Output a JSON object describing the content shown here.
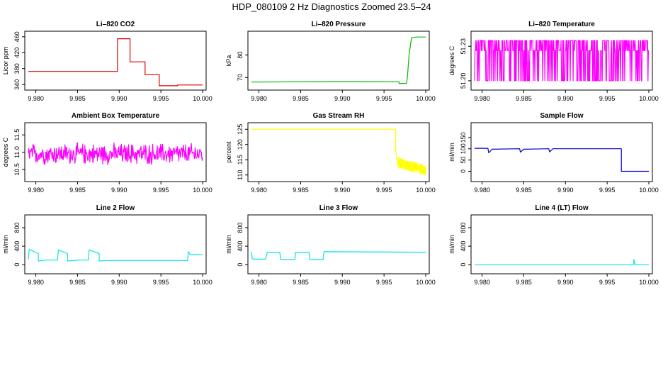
{
  "page": {
    "title": "HDP_080109  2 Hz Diagnostics Zoomed 23.5–24"
  },
  "chart_data": [
    {
      "type": "line",
      "title": "Li–820 CO2",
      "ylabel": "Licor ppm",
      "color": "#dd0000",
      "xlim": [
        9.9791,
        10.0
      ],
      "ylim": [
        335,
        465
      ],
      "xticks": [
        "9.980",
        "9.985",
        "9.990",
        "9.995",
        "10.000"
      ],
      "yticks": [
        340,
        380,
        420,
        460
      ],
      "series": [
        {
          "x": [
            9.9791,
            9.9898,
            9.9898,
            9.9913,
            9.9913,
            9.9931,
            9.9931,
            9.9948,
            9.9948,
            9.997,
            9.997,
            10.0
          ],
          "y": [
            373,
            373,
            455,
            455,
            397,
            397,
            365,
            365,
            337,
            337,
            339,
            339
          ]
        }
      ]
    },
    {
      "type": "line",
      "title": "Li–820 Pressure",
      "ylabel": "kPa",
      "color": "#00bb00",
      "xlim": [
        9.9791,
        10.0
      ],
      "ylim": [
        66,
        89
      ],
      "xticks": [
        "9.980",
        "9.985",
        "9.990",
        "9.995",
        "10.000"
      ],
      "yticks": [
        70,
        80
      ],
      "series": [
        {
          "x": [
            9.9791,
            9.99,
            9.9968,
            9.9968,
            9.9977,
            9.9978,
            9.998,
            9.9983,
            9.999,
            10.0
          ],
          "y": [
            68,
            68.2,
            68.1,
            67.4,
            67.4,
            70,
            80,
            87.8,
            88,
            88
          ]
        }
      ]
    },
    {
      "type": "line",
      "title": "Li–820 Temperature",
      "ylabel": "degrees C",
      "color": "#ff00ff",
      "xlim": [
        9.9791,
        10.0
      ],
      "ylim": [
        51.195,
        51.24
      ],
      "xticks": [
        "9.980",
        "9.985",
        "9.990",
        "9.995",
        "10.000"
      ],
      "yticks": [
        "51.20",
        "51.23"
      ],
      "series": [
        {
          "noise": true,
          "low": 51.2,
          "high": 51.235
        }
      ]
    },
    {
      "type": "line",
      "title": "Ambient Box Temperature",
      "ylabel": "degrees C",
      "color": "#ff00ff",
      "xlim": [
        9.9791,
        10.0
      ],
      "ylim": [
        10.25,
        11.75
      ],
      "xticks": [
        "9.980",
        "9.985",
        "9.990",
        "9.995",
        "10.000"
      ],
      "yticks": [
        "10.5",
        "11.0",
        "11.5"
      ],
      "series": [
        {
          "noise": true,
          "center": 10.95,
          "spread": 0.35
        }
      ]
    },
    {
      "type": "line",
      "title": "Gas Stream RH",
      "ylabel": "percent",
      "color": "#ffff00",
      "xlim": [
        9.9791,
        10.0
      ],
      "ylim": [
        109,
        126
      ],
      "xticks": [
        "9.980",
        "9.985",
        "9.990",
        "9.995",
        "10.000"
      ],
      "yticks": [
        110,
        115,
        120,
        125
      ],
      "series": [
        {
          "x": [
            9.9791,
            9.9964,
            9.9964,
            9.9967,
            10.0
          ],
          "y": [
            125,
            125,
            118,
            112.5,
            111.5
          ]
        }
      ]
    },
    {
      "type": "line",
      "title": "Sample Flow",
      "ylabel": "ml/min",
      "color": "#0000cc",
      "xlim": [
        9.9791,
        10.0
      ],
      "ylim": [
        -30,
        200
      ],
      "xticks": [
        "9.980",
        "9.985",
        "9.990",
        "9.995",
        "10.000"
      ],
      "yticks": [
        0,
        50,
        100,
        150
      ],
      "series": [
        {
          "x": [
            9.9791,
            9.9807,
            9.9808,
            9.9812,
            9.9845,
            9.9846,
            9.985,
            9.988,
            9.9881,
            9.9885,
            9.9967,
            9.9967,
            10.0
          ],
          "y": [
            102,
            102,
            82,
            98,
            100,
            85,
            98,
            100,
            86,
            100,
            100,
            0,
            0
          ]
        }
      ]
    },
    {
      "type": "line",
      "title": "Line 2 Flow",
      "ylabel": "ml/min",
      "color": "#00e5e5",
      "xlim": [
        9.9791,
        10.0
      ],
      "ylim": [
        -120,
        1000
      ],
      "xticks": [
        "9.980",
        "9.985",
        "9.990",
        "9.995",
        "10.000"
      ],
      "yticks": [
        0,
        400,
        800
      ],
      "series": [
        {
          "x": [
            9.9791,
            9.9792,
            9.9803,
            9.9803,
            9.9812,
            9.9826,
            9.9827,
            9.9838,
            9.9838,
            9.9852,
            9.9863,
            9.9864,
            9.9876,
            9.9876,
            9.9887,
            9.9982,
            9.9983,
            9.9985,
            10.0
          ],
          "y": [
            120,
            330,
            240,
            80,
            100,
            100,
            320,
            240,
            80,
            100,
            100,
            320,
            240,
            80,
            90,
            90,
            280,
            220,
            220
          ]
        }
      ]
    },
    {
      "type": "line",
      "title": "Line 3 Flow",
      "ylabel": "ml/min",
      "color": "#00e5e5",
      "xlim": [
        9.9791,
        10.0
      ],
      "ylim": [
        -120,
        1000
      ],
      "xticks": [
        "9.980",
        "9.985",
        "9.990",
        "9.995",
        "10.000"
      ],
      "yticks": [
        0,
        400,
        800
      ],
      "series": [
        {
          "x": [
            9.9791,
            9.9792,
            9.9794,
            9.9808,
            9.981,
            9.9825,
            9.9826,
            9.9843,
            9.9844,
            9.986,
            9.9861,
            9.9877,
            9.9878,
            10.0
          ],
          "y": [
            280,
            130,
            120,
            120,
            270,
            270,
            110,
            110,
            270,
            270,
            110,
            110,
            280,
            270
          ]
        }
      ]
    },
    {
      "type": "line",
      "title": "Line 4 (LT) Flow",
      "ylabel": "ml/min",
      "color": "#00e5e5",
      "xlim": [
        9.9791,
        10.0
      ],
      "ylim": [
        -120,
        1000
      ],
      "xticks": [
        "9.980",
        "9.985",
        "9.990",
        "9.995",
        "10.000"
      ],
      "yticks": [
        0,
        400,
        800
      ],
      "series": [
        {
          "x": [
            9.9791,
            9.9982,
            9.9982,
            9.9983,
            9.9984,
            10.0
          ],
          "y": [
            0,
            0,
            110,
            40,
            0,
            0
          ]
        }
      ]
    }
  ]
}
